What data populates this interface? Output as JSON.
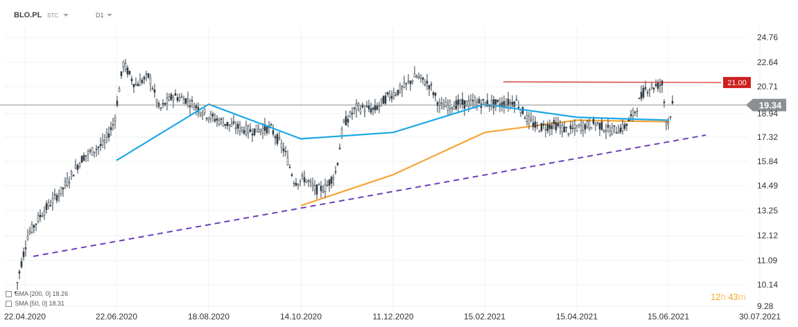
{
  "header": {
    "symbol": "BLO.PL",
    "market": "STC",
    "timeframe": "D1"
  },
  "countdown": {
    "hours": "12",
    "h_unit": "h",
    "minutes": "43",
    "m_unit": "m"
  },
  "legend": [
    {
      "label": "SMA [200, 0] 18.26"
    },
    {
      "label": "SMA [50, 0] 18.31"
    }
  ],
  "colors": {
    "candle": "#2f3b44",
    "sma50": "#1ba7e6",
    "sma200": "#f7a333",
    "trendline": "#6a3fb8",
    "resistance": "#cc1f1f",
    "current": "#8a8f93"
  },
  "chart_data": {
    "type": "line",
    "x_labels": [
      "22.04.2020",
      "22.06.2020",
      "18.08.2020",
      "14.10.2020",
      "11.12.2020",
      "15.02.2021",
      "15.04.2021",
      "15.06.2021",
      "30.07.2021"
    ],
    "y_ticks": [
      "24.76",
      "22.64",
      "20.71",
      "18.94",
      "17.32",
      "15.84",
      "14.49",
      "13.25",
      "12.12",
      "11.09",
      "10.14",
      "9.28"
    ],
    "ylim": [
      9.28,
      24.76
    ],
    "y_scale": "log",
    "series": [
      {
        "name": "SMA [200, 0] 18.26",
        "x": [
          "14.10.2020",
          "11.12.2020",
          "15.02.2021",
          "15.04.2021",
          "15.06.2021"
        ],
        "values": [
          13.4,
          15.0,
          17.5,
          18.3,
          18.2
        ]
      },
      {
        "name": "SMA [50, 0] 18.31",
        "x": [
          "22.06.2020",
          "18.08.2020",
          "14.10.2020",
          "11.12.2020",
          "15.02.2021",
          "15.04.2021",
          "15.06.2021"
        ],
        "values": [
          15.8,
          19.4,
          17.1,
          17.5,
          19.4,
          18.5,
          18.3
        ]
      }
    ],
    "annotations": {
      "resistance": "21.00",
      "current_price": "19.34"
    }
  }
}
